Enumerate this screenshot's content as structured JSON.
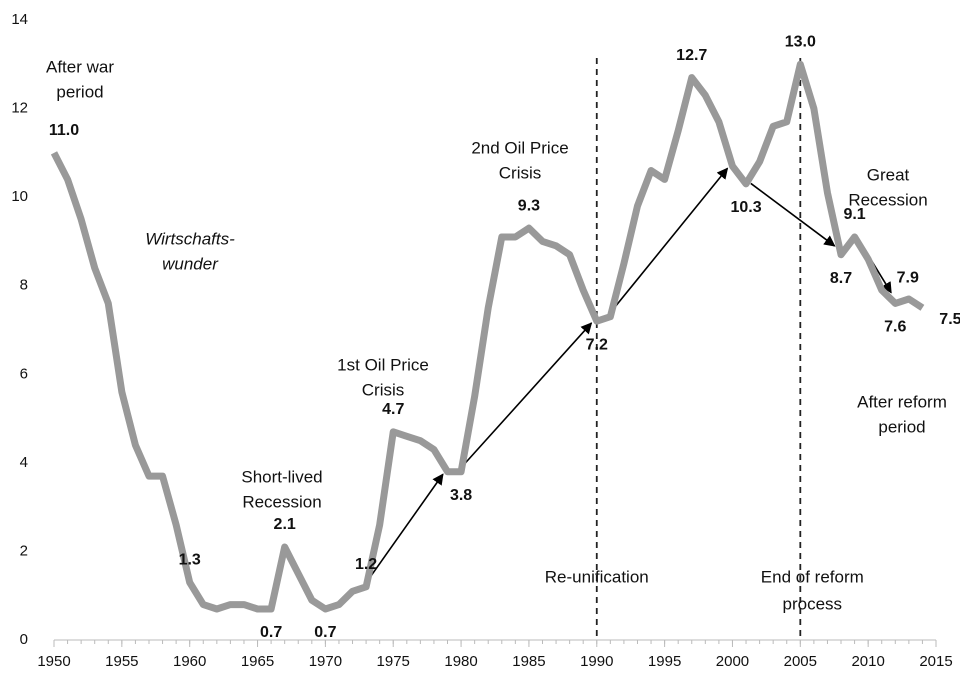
{
  "chart_data": {
    "type": "line",
    "x": [
      1950,
      1951,
      1952,
      1953,
      1954,
      1955,
      1956,
      1957,
      1958,
      1959,
      1960,
      1961,
      1962,
      1963,
      1964,
      1965,
      1966,
      1967,
      1968,
      1969,
      1970,
      1971,
      1972,
      1973,
      1974,
      1975,
      1976,
      1977,
      1978,
      1979,
      1980,
      1981,
      1982,
      1983,
      1984,
      1985,
      1986,
      1987,
      1988,
      1989,
      1990,
      1991,
      1992,
      1993,
      1994,
      1995,
      1996,
      1997,
      1998,
      1999,
      2000,
      2001,
      2002,
      2003,
      2004,
      2005,
      2006,
      2007,
      2008,
      2009,
      2010,
      2011,
      2012,
      2013,
      2014
    ],
    "series": [
      {
        "color": "#999999",
        "values": [
          11.0,
          10.4,
          9.5,
          8.4,
          7.6,
          5.6,
          4.4,
          3.7,
          3.7,
          2.6,
          1.3,
          0.8,
          0.7,
          0.8,
          0.8,
          0.7,
          0.7,
          2.1,
          1.5,
          0.9,
          0.7,
          0.8,
          1.1,
          1.2,
          2.6,
          4.7,
          4.6,
          4.5,
          4.3,
          3.8,
          3.8,
          5.5,
          7.5,
          9.1,
          9.1,
          9.3,
          9.0,
          8.9,
          8.7,
          7.9,
          7.2,
          7.3,
          8.5,
          9.8,
          10.6,
          10.4,
          11.5,
          12.7,
          12.3,
          11.7,
          10.7,
          10.3,
          10.8,
          11.6,
          11.7,
          13.0,
          12.0,
          10.1,
          8.7,
          9.1,
          8.6,
          7.9,
          7.6,
          7.7,
          7.5
        ],
        "value_labels": [
          "11.0",
          null,
          null,
          null,
          null,
          null,
          null,
          null,
          null,
          null,
          "1.3",
          null,
          null,
          null,
          null,
          null,
          "0.7",
          "2.1",
          null,
          null,
          "0.7",
          null,
          null,
          "1.2",
          null,
          "4.7",
          null,
          null,
          null,
          null,
          "3.8",
          null,
          null,
          null,
          null,
          "9.3",
          null,
          null,
          null,
          null,
          "7.2",
          null,
          null,
          null,
          null,
          null,
          null,
          "12.7",
          null,
          null,
          null,
          "10.3",
          null,
          null,
          null,
          "13.0",
          null,
          null,
          "8.7",
          "9.1",
          null,
          "7.9",
          "7.6",
          null,
          "7.5"
        ]
      }
    ],
    "xlim": [
      1950,
      2015
    ],
    "xticks": [
      1950,
      1955,
      1960,
      1965,
      1970,
      1975,
      1980,
      1985,
      1990,
      1995,
      2000,
      2005,
      2010,
      2015
    ],
    "ylim": [
      0,
      14
    ],
    "yticks": [
      0,
      2,
      4,
      6,
      8,
      10,
      12,
      14
    ],
    "reference_lines": [
      {
        "x": 1990,
        "label": [
          "Re-unification"
        ]
      },
      {
        "x": 2005,
        "label": [
          "End of reform",
          "process"
        ]
      }
    ],
    "annotations": [
      [
        "After war",
        "period"
      ],
      [
        "Wirtschafts-",
        "wunder"
      ],
      [
        "Short-lived",
        "Recession"
      ],
      [
        "1st Oil Price",
        "Crisis"
      ],
      [
        "2nd Oil Price",
        "Crisis"
      ],
      [
        "Great",
        "Recession"
      ],
      [
        "After reform",
        "period"
      ]
    ]
  }
}
